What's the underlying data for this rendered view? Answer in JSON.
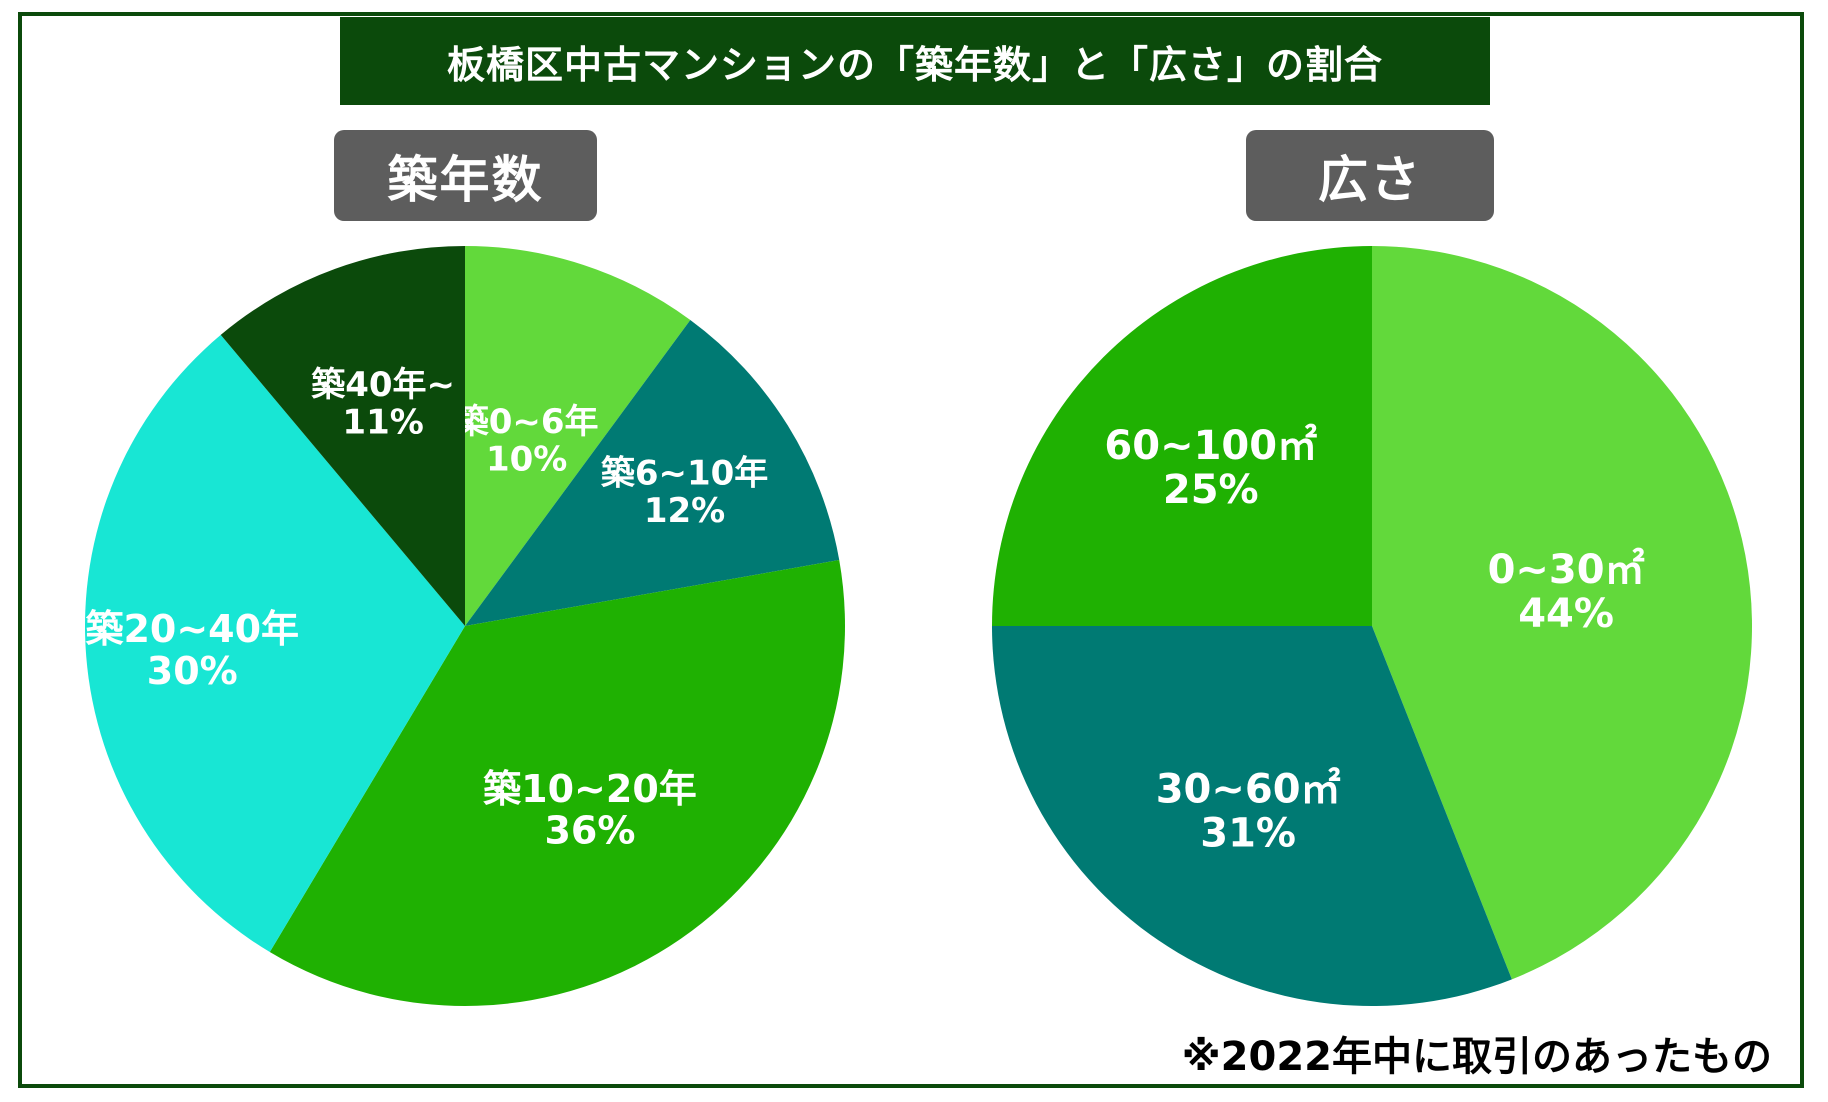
{
  "title": "板橋区中古マンションの「築年数」と「広さ」の割合",
  "footnote": "※2022年中に取引のあったもの",
  "chart_data": [
    {
      "type": "pie",
      "title": "築年数",
      "slices": [
        {
          "label": "築0~6年",
          "value": 10,
          "value_label": "10%",
          "color": "#62d93b"
        },
        {
          "label": "築6~10年",
          "value": 12,
          "value_label": "12%",
          "color": "#007a73"
        },
        {
          "label": "築10~20年",
          "value": 36,
          "value_label": "36%",
          "color": "#1fb102"
        },
        {
          "label": "築20~40年",
          "value": 30,
          "value_label": "30%",
          "color": "#18e6d4"
        },
        {
          "label": "築40年~",
          "value": 11,
          "value_label": "11%",
          "color": "#0b4a0b"
        }
      ],
      "start_angle": "12 o'clock",
      "direction": "clockwise"
    },
    {
      "type": "pie",
      "title": "広さ",
      "slices": [
        {
          "label": "0~30㎡",
          "value": 44,
          "value_label": "44%",
          "color": "#62d93b"
        },
        {
          "label": "30~60㎡",
          "value": 31,
          "value_label": "31%",
          "color": "#007a73"
        },
        {
          "label": "60~100㎡",
          "value": 25,
          "value_label": "25%",
          "color": "#1fb102"
        }
      ],
      "start_angle": "12 o'clock",
      "direction": "clockwise"
    }
  ]
}
